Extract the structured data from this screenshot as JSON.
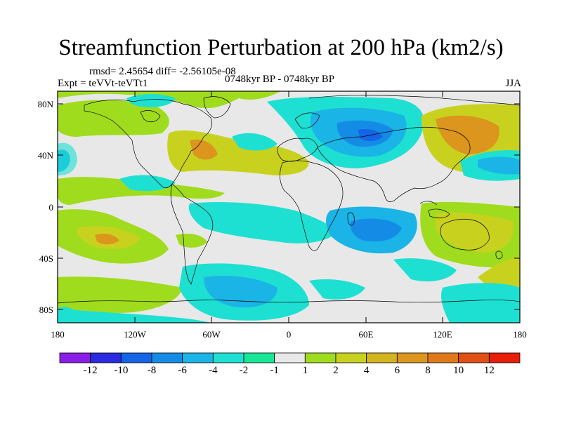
{
  "title": "Streamfunction Perturbation at 200 hPa (km2/s)",
  "stats": "rmsd= 2.45654  diff= -2.56105e-08",
  "experiment": "Expt = teVVt-teVTt1",
  "period": "0748kyr BP - 0748kyr BP",
  "season": "JJA",
  "map": {
    "projection": "cylindrical equidistant",
    "lon_range": [
      -180,
      180
    ],
    "lat_range": [
      -90,
      90
    ],
    "lat_labels": [
      "80N",
      "40N",
      "0",
      "40S",
      "80S"
    ],
    "lon_labels": [
      "180",
      "120W",
      "60W",
      "0",
      "60E",
      "120E",
      "180"
    ]
  },
  "colorbar": {
    "colors": [
      "#8a1ee6",
      "#2a2ae0",
      "#1464e6",
      "#148ce6",
      "#1ab4e6",
      "#1ee0d2",
      "#18e696",
      "#e8e8e8",
      "#a0dc1e",
      "#c8d21e",
      "#d2b41e",
      "#dc961e",
      "#e0781a",
      "#e05014",
      "#e61e0a"
    ],
    "labels": [
      "-12",
      "-10",
      "-8",
      "-6",
      "-4",
      "-2",
      "-1",
      "1",
      "2",
      "4",
      "6",
      "8",
      "10",
      "12"
    ]
  }
}
